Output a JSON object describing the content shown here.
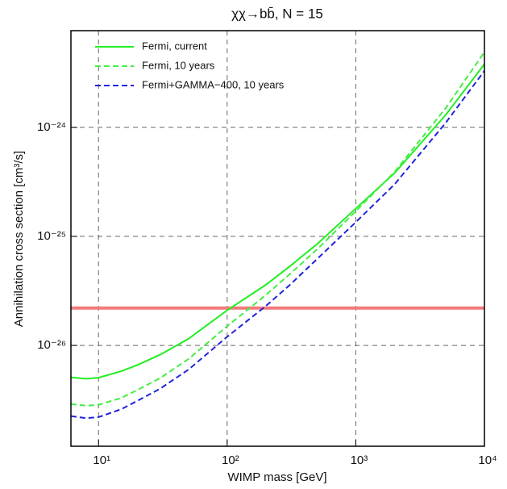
{
  "chart_data": {
    "type": "line",
    "title": "χχ→bb̄, N = 15",
    "x_label": "WIMP mass [GeV]",
    "y_label": "Annihilation cross section [cm³/s]",
    "x_log": true,
    "y_log": true,
    "grid": true,
    "legend": "upper left",
    "xlim": [
      6.1,
      10000
    ],
    "ylim": [
      1.19e-27,
      7.7e-24
    ],
    "xticks": [
      {
        "value": 10,
        "label": "10¹"
      },
      {
        "value": 100,
        "label": "10²"
      },
      {
        "value": 1000,
        "label": "10³"
      },
      {
        "value": 10000,
        "label": "10⁴"
      }
    ],
    "yticks": [
      {
        "value": 1e-26,
        "label": "10⁻²⁶"
      },
      {
        "value": 1e-25,
        "label": "10⁻²⁵"
      },
      {
        "value": 1e-24,
        "label": "10⁻²⁴"
      }
    ],
    "x": [
      6.1,
      8,
      10,
      15,
      20,
      30,
      50,
      100,
      200,
      300,
      500,
      1000,
      2000,
      5000,
      10000
    ],
    "series": [
      {
        "name": "Fermi, current",
        "color": "#22ee22",
        "dashed": false,
        "values": [
          5.1e-27,
          4.95e-27,
          5.06e-27,
          5.8e-27,
          6.6e-27,
          8.2e-27,
          1.15e-26,
          2.1e-26,
          3.6e-26,
          5.2e-26,
          8.5e-26,
          1.8e-25,
          3.8e-25,
          1.3e-24,
          3.8e-24
        ]
      },
      {
        "name": "Fermi, 10 years",
        "color": "#44ee44",
        "dashed": true,
        "values": [
          2.9e-27,
          2.8e-27,
          2.85e-27,
          3.3e-27,
          3.9e-27,
          5e-27,
          7.5e-27,
          1.5e-26,
          2.9e-26,
          4.4e-26,
          7.6e-26,
          1.7e-25,
          3.9e-25,
          1.5e-24,
          4.9e-24
        ]
      },
      {
        "name": "Fermi+GAMMA−400, 10 years",
        "color": "#2222dd",
        "dashed": true,
        "values": [
          2.25e-27,
          2.15e-27,
          2.2e-27,
          2.6e-27,
          3.1e-27,
          4e-27,
          6e-27,
          1.2e-26,
          2.3e-26,
          3.5e-26,
          6.2e-26,
          1.35e-25,
          3e-25,
          1.1e-24,
          3.3e-24
        ]
      }
    ],
    "reference_line": {
      "value": 2.2e-26,
      "color": "#f47a7a"
    }
  }
}
